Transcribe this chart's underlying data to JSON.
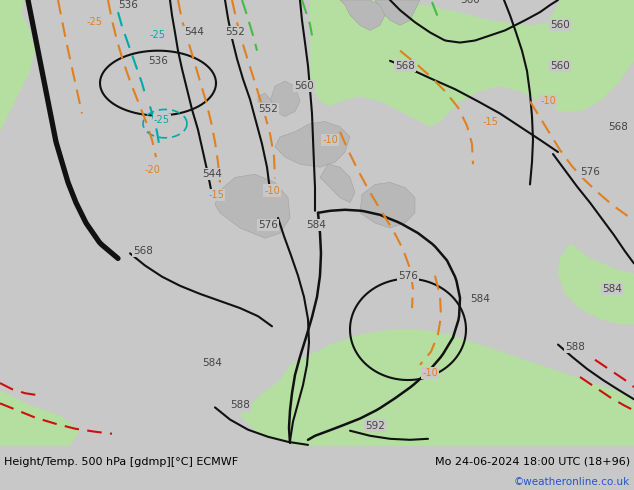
{
  "title_left": "Height/Temp. 500 hPa [gdmp][°C] ECMWF",
  "title_right": "Mo 24-06-2024 18:00 UTC (18+96)",
  "watermark": "©weatheronline.co.uk",
  "fig_width": 6.34,
  "fig_height": 4.9,
  "dpi": 100,
  "bg_gray": "#c8c8c8",
  "warm_green": "#b4dfa0",
  "label_color": "#444444",
  "orange_color": "#e08020",
  "red_color": "#cc1010",
  "teal_color": "#00aaaa",
  "green_color": "#44bb44",
  "black_contour": "#111111",
  "white_bg": "#ffffff"
}
